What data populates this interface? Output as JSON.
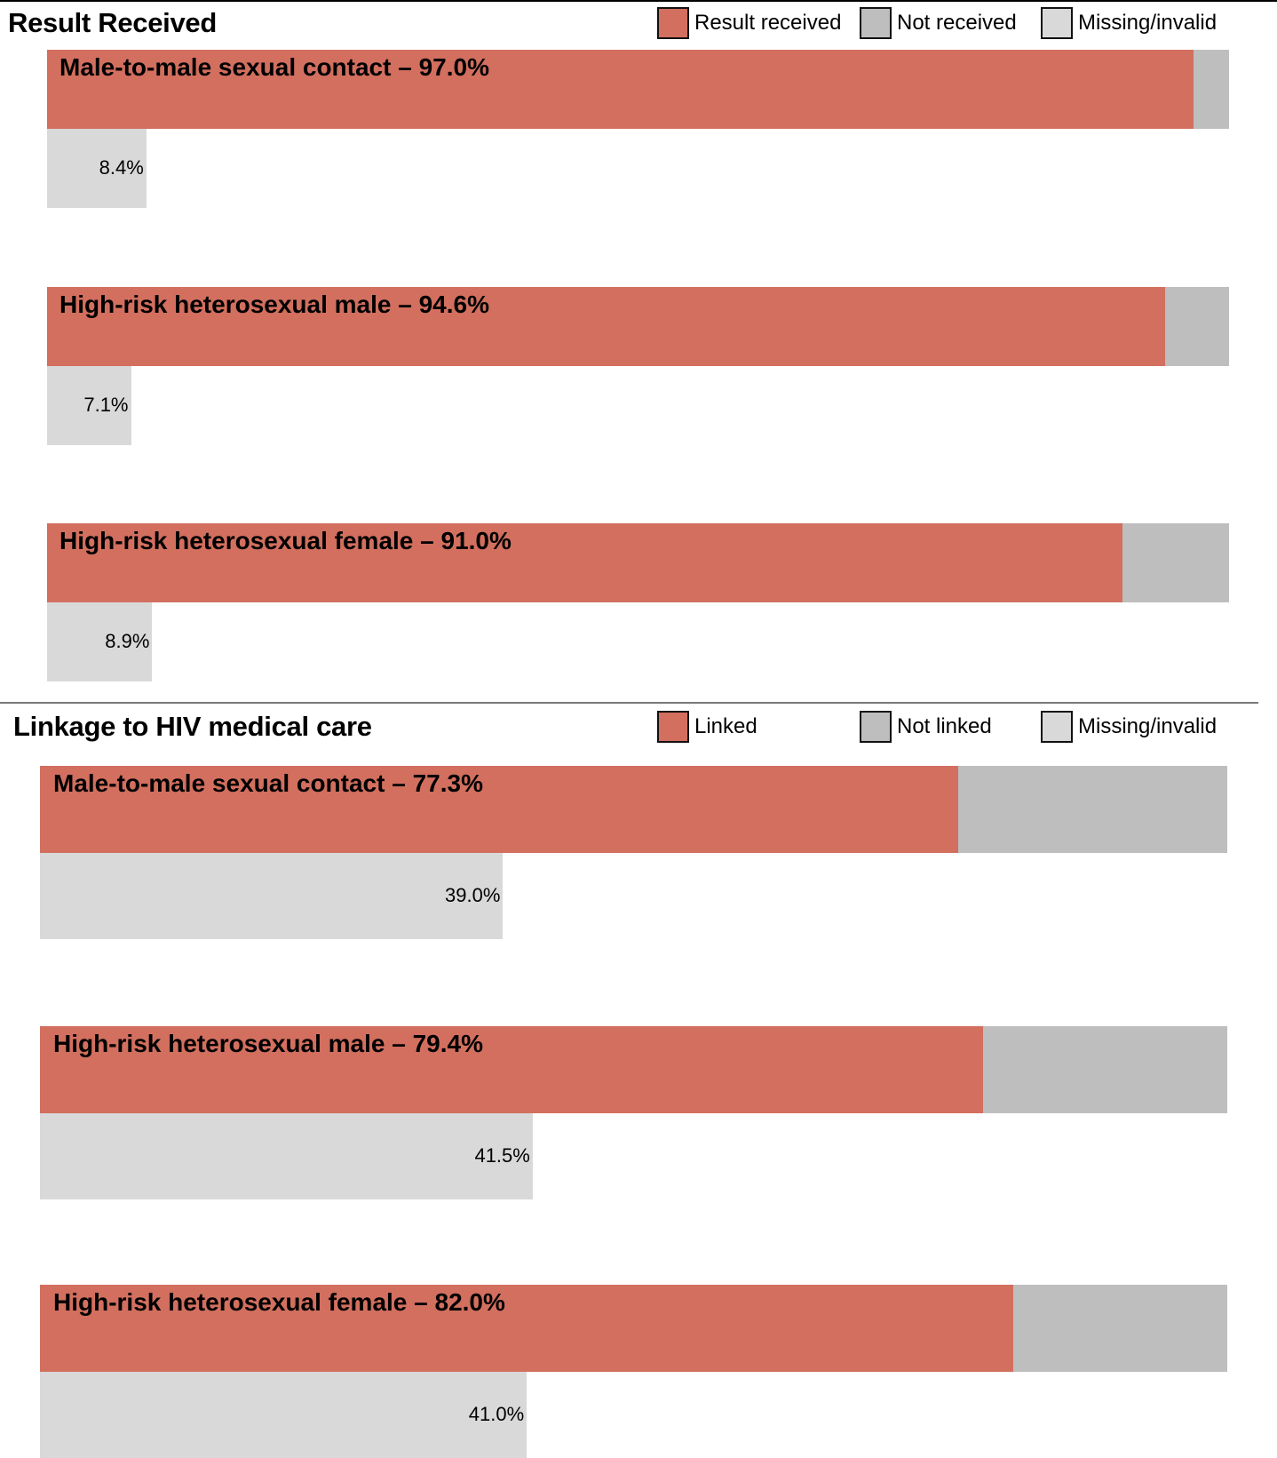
{
  "colors": {
    "primary": "#d26f5f",
    "secondary": "#bebebe",
    "missing": "#d9d9d9"
  },
  "chart_data": [
    {
      "type": "bar",
      "title": "Result Received",
      "legend": [
        "Result received",
        "Not received",
        "Missing/invalid"
      ],
      "legend_position": "top-right",
      "categories": [
        "Male-to-male sexual contact",
        "High-risk heterosexual male",
        "High-risk heterosexual female"
      ],
      "bar_labels": [
        "Male-to-male sexual contact – 97.0%",
        "High-risk heterosexual male – 94.6%",
        "High-risk heterosexual female – 91.0%"
      ],
      "series": [
        {
          "name": "Result received",
          "values": [
            97.0,
            94.6,
            91.0
          ]
        },
        {
          "name": "Not received",
          "values": [
            3.0,
            5.4,
            9.0
          ]
        },
        {
          "name": "Missing/invalid",
          "values": [
            8.4,
            7.1,
            8.9
          ]
        }
      ],
      "missing_labels": [
        "8.4%",
        "7.1%",
        "8.9%"
      ],
      "ylim": [
        0,
        100
      ]
    },
    {
      "type": "bar",
      "title": "Linkage to HIV medical care",
      "legend": [
        "Linked",
        "Not linked",
        "Missing/invalid"
      ],
      "legend_position": "top-right",
      "categories": [
        "Male-to-male sexual contact",
        "High-risk heterosexual male",
        "High-risk heterosexual female"
      ],
      "bar_labels": [
        "Male-to-male sexual contact – 77.3%",
        "High-risk heterosexual male – 79.4%",
        "High-risk heterosexual female – 82.0%"
      ],
      "series": [
        {
          "name": "Linked",
          "values": [
            77.3,
            79.4,
            82.0
          ]
        },
        {
          "name": "Not linked",
          "values": [
            22.7,
            20.6,
            18.0
          ]
        },
        {
          "name": "Missing/invalid",
          "values": [
            39.0,
            41.5,
            41.0
          ]
        }
      ],
      "missing_labels": [
        "39.0%",
        "41.5%",
        "41.0%"
      ],
      "ylim": [
        0,
        100
      ]
    }
  ]
}
